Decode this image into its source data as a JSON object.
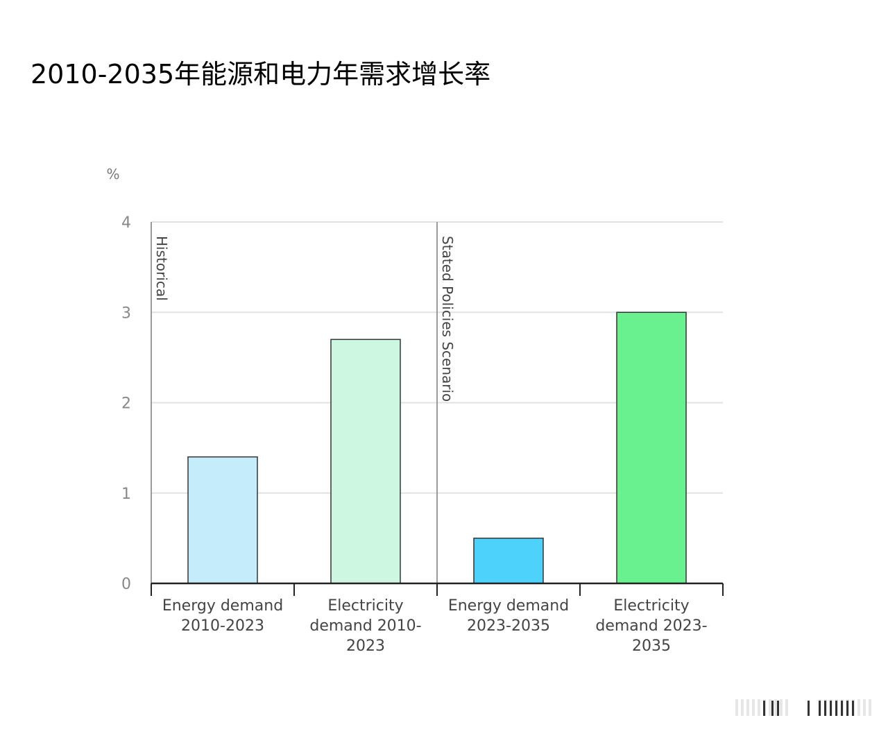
{
  "page": {
    "title": "2010-2035年能源和电力年需求增长率"
  },
  "chart_data": {
    "type": "bar",
    "ylabel": "%",
    "ylim": [
      0,
      4
    ],
    "yticks": [
      0,
      1,
      2,
      3,
      4
    ],
    "grid": true,
    "categories": [
      [
        "Energy demand",
        "2010-2023"
      ],
      [
        "Electricity",
        "demand 2010-",
        "2023"
      ],
      [
        "Energy demand",
        "2023-2035"
      ],
      [
        "Electricity",
        "demand 2023-",
        "2035"
      ]
    ],
    "values": [
      1.4,
      2.7,
      0.5,
      3.0
    ],
    "bar_colors": [
      "#c5ecfa",
      "#cdf7e0",
      "#4dd2fc",
      "#68f18e"
    ],
    "sections": [
      {
        "label": "Historical",
        "start_index": 0
      },
      {
        "label": "Stated Policies Scenario",
        "start_index": 2
      }
    ]
  }
}
